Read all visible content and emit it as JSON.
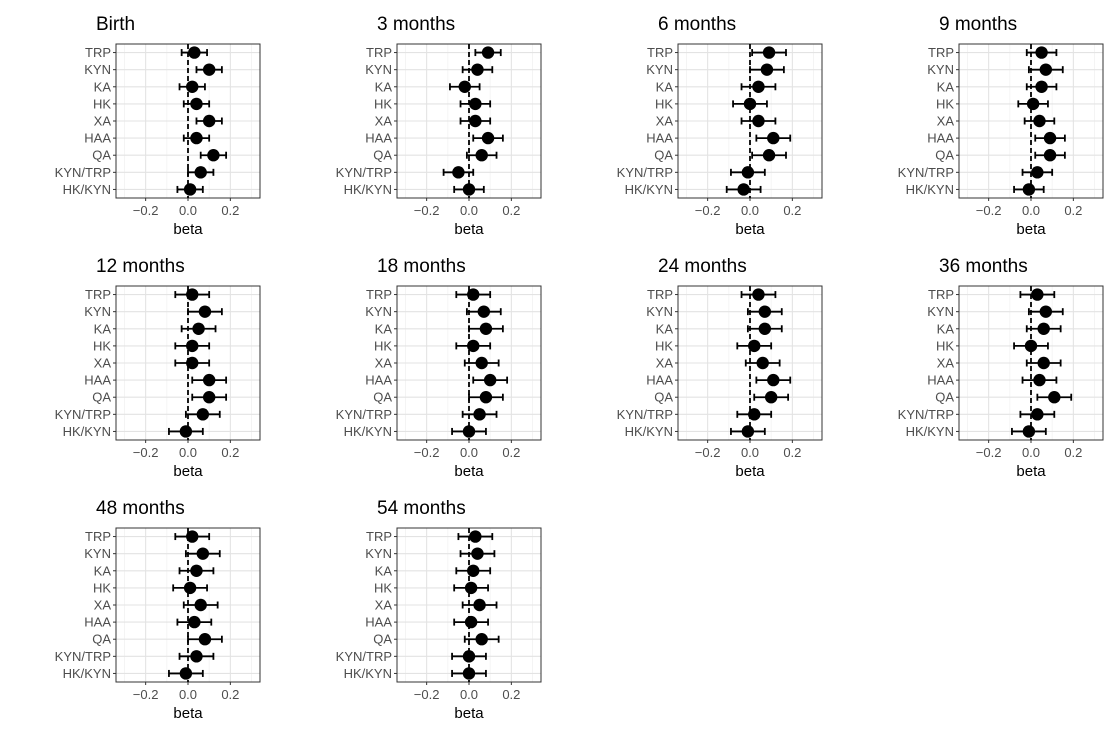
{
  "chart_data": {
    "type": "scatter",
    "style": "forest-plot, point estimate with error bars, facetted",
    "xlabel": "beta",
    "xlim": [
      -0.34,
      0.34
    ],
    "xticks": [
      -0.2,
      0.0,
      0.2
    ],
    "xtick_labels": [
      "−0.2",
      "0.0",
      "0.2"
    ],
    "reference_line": 0,
    "grid": true,
    "categories": [
      "TRP",
      "KYN",
      "KA",
      "HK",
      "XA",
      "HAA",
      "QA",
      "KYN/TRP",
      "HK/KYN"
    ],
    "panels": [
      {
        "title": "Birth",
        "beta": [
          0.03,
          0.1,
          0.02,
          0.04,
          0.1,
          0.04,
          0.12,
          0.06,
          0.01
        ],
        "lower": [
          -0.03,
          0.04,
          -0.04,
          -0.02,
          0.04,
          -0.02,
          0.06,
          0.0,
          -0.05
        ],
        "upper": [
          0.09,
          0.16,
          0.08,
          0.1,
          0.16,
          0.1,
          0.18,
          0.12,
          0.07
        ]
      },
      {
        "title": "3 months",
        "beta": [
          0.09,
          0.04,
          -0.02,
          0.03,
          0.03,
          0.09,
          0.06,
          -0.05,
          0.0
        ],
        "lower": [
          0.03,
          -0.03,
          -0.09,
          -0.04,
          -0.04,
          0.02,
          -0.01,
          -0.12,
          -0.07
        ],
        "upper": [
          0.15,
          0.11,
          0.05,
          0.1,
          0.1,
          0.16,
          0.13,
          0.02,
          0.07
        ]
      },
      {
        "title": "6 months",
        "beta": [
          0.09,
          0.08,
          0.04,
          0.0,
          0.04,
          0.11,
          0.09,
          -0.01,
          -0.03
        ],
        "lower": [
          0.01,
          0.0,
          -0.04,
          -0.08,
          -0.04,
          0.03,
          0.01,
          -0.09,
          -0.11
        ],
        "upper": [
          0.17,
          0.16,
          0.12,
          0.08,
          0.12,
          0.19,
          0.17,
          0.07,
          0.05
        ]
      },
      {
        "title": "9 months",
        "beta": [
          0.05,
          0.07,
          0.05,
          0.01,
          0.04,
          0.09,
          0.09,
          0.03,
          -0.01
        ],
        "lower": [
          -0.02,
          -0.01,
          -0.02,
          -0.06,
          -0.03,
          0.02,
          0.02,
          -0.04,
          -0.08
        ],
        "upper": [
          0.12,
          0.15,
          0.12,
          0.08,
          0.11,
          0.16,
          0.16,
          0.1,
          0.06
        ]
      },
      {
        "title": "12 months",
        "beta": [
          0.02,
          0.08,
          0.05,
          0.02,
          0.02,
          0.1,
          0.1,
          0.07,
          -0.01
        ],
        "lower": [
          -0.06,
          0.0,
          -0.03,
          -0.06,
          -0.06,
          0.02,
          0.02,
          -0.01,
          -0.09
        ],
        "upper": [
          0.1,
          0.16,
          0.13,
          0.1,
          0.1,
          0.18,
          0.18,
          0.15,
          0.07
        ]
      },
      {
        "title": "18 months",
        "beta": [
          0.02,
          0.07,
          0.08,
          0.02,
          0.06,
          0.1,
          0.08,
          0.05,
          0.0
        ],
        "lower": [
          -0.06,
          -0.01,
          0.0,
          -0.06,
          -0.02,
          0.02,
          0.0,
          -0.03,
          -0.08
        ],
        "upper": [
          0.1,
          0.15,
          0.16,
          0.1,
          0.14,
          0.18,
          0.16,
          0.13,
          0.08
        ]
      },
      {
        "title": "24 months",
        "beta": [
          0.04,
          0.07,
          0.07,
          0.02,
          0.06,
          0.11,
          0.1,
          0.02,
          -0.01
        ],
        "lower": [
          -0.04,
          -0.01,
          -0.01,
          -0.06,
          -0.02,
          0.03,
          0.02,
          -0.06,
          -0.09
        ],
        "upper": [
          0.12,
          0.15,
          0.15,
          0.1,
          0.14,
          0.19,
          0.18,
          0.1,
          0.07
        ]
      },
      {
        "title": "36 months",
        "beta": [
          0.03,
          0.07,
          0.06,
          0.0,
          0.06,
          0.04,
          0.11,
          0.03,
          -0.01
        ],
        "lower": [
          -0.05,
          -0.01,
          -0.02,
          -0.08,
          -0.02,
          -0.04,
          0.03,
          -0.05,
          -0.09
        ],
        "upper": [
          0.11,
          0.15,
          0.14,
          0.08,
          0.14,
          0.12,
          0.19,
          0.11,
          0.07
        ]
      },
      {
        "title": "48 months",
        "beta": [
          0.02,
          0.07,
          0.04,
          0.01,
          0.06,
          0.03,
          0.08,
          0.04,
          -0.01
        ],
        "lower": [
          -0.06,
          -0.01,
          -0.04,
          -0.07,
          -0.02,
          -0.05,
          0.0,
          -0.04,
          -0.09
        ],
        "upper": [
          0.1,
          0.15,
          0.12,
          0.09,
          0.14,
          0.11,
          0.16,
          0.12,
          0.07
        ]
      },
      {
        "title": "54 months",
        "beta": [
          0.03,
          0.04,
          0.02,
          0.01,
          0.05,
          0.01,
          0.06,
          0.0,
          0.0
        ],
        "lower": [
          -0.05,
          -0.04,
          -0.06,
          -0.07,
          -0.03,
          -0.07,
          -0.02,
          -0.08,
          -0.08
        ],
        "upper": [
          0.11,
          0.12,
          0.1,
          0.09,
          0.13,
          0.09,
          0.14,
          0.08,
          0.08
        ]
      }
    ]
  }
}
